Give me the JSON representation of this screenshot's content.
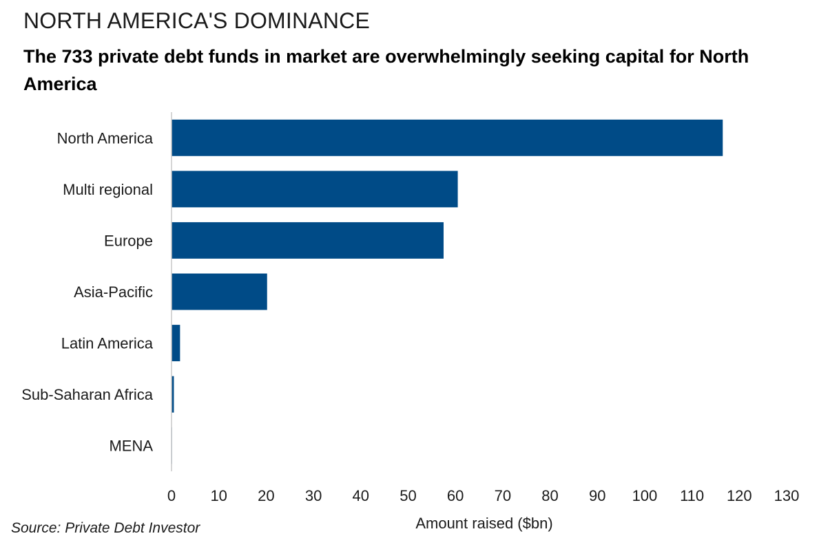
{
  "header": {
    "title": "NORTH AMERICA'S DOMINANCE",
    "subtitle": "The 733 private debt funds in market are overwhelmingly seeking capital for North America"
  },
  "footer": {
    "source": "Source: Private Debt Investor"
  },
  "chart_data": {
    "type": "bar",
    "orientation": "horizontal",
    "categories": [
      "North America",
      "Multi regional",
      "Europe",
      "Asia-Pacific",
      "Latin America",
      "Sub-Saharan Africa",
      "MENA"
    ],
    "values": [
      116.5,
      60.5,
      57.5,
      20.2,
      1.8,
      0.5,
      0.1
    ],
    "xlabel": "Amount raised ($bn)",
    "xlim": [
      0,
      130
    ],
    "xticks": [
      0,
      10,
      20,
      30,
      40,
      50,
      60,
      70,
      80,
      90,
      100,
      110,
      120,
      130
    ],
    "bar_color": "#004b87",
    "grid": false,
    "legend": "none"
  }
}
